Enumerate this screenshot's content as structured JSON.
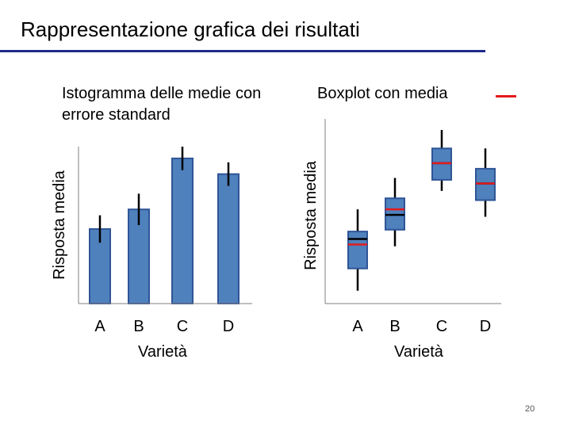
{
  "slide": {
    "title": "Rappresentazione grafica dei risultati",
    "page_number": "20"
  },
  "colors": {
    "title_rule": "#1f2a8a",
    "bar_fill": "#4f81bd",
    "bar_stroke": "#2f5597",
    "median_line": "#000000",
    "mean_line": "#e31a1c",
    "axis": "#808080"
  },
  "legend": {
    "mean_marker": "red-dash"
  },
  "chart_data": [
    {
      "type": "bar",
      "title": "Istogramma delle medie con errore standard",
      "xlabel": "Varietà",
      "ylabel": "Risposta media",
      "categories": [
        "A",
        "B",
        "C",
        "D"
      ],
      "values": [
        38,
        48,
        74,
        66
      ],
      "error": [
        7,
        8,
        6,
        6
      ],
      "ylim": [
        0,
        80
      ],
      "grid": false
    },
    {
      "type": "box",
      "title": "Boxplot con media",
      "xlabel": "Varietà",
      "ylabel": "Risposta media",
      "categories": [
        "A",
        "B",
        "C",
        "D"
      ],
      "boxes": [
        {
          "whisker_low": 7,
          "q1": 19,
          "median": 35,
          "mean": 32,
          "q3": 39,
          "whisker_high": 51
        },
        {
          "whisker_low": 31,
          "q1": 40,
          "median": 48,
          "mean": 51,
          "q3": 57,
          "whisker_high": 68
        },
        {
          "whisker_low": 61,
          "q1": 67,
          "median": 76,
          "mean": 76,
          "q3": 84,
          "whisker_high": 94
        },
        {
          "whisker_low": 47,
          "q1": 56,
          "median": 65,
          "mean": 65,
          "q3": 73,
          "whisker_high": 84
        }
      ],
      "ylim": [
        0,
        100
      ],
      "grid": false
    }
  ]
}
